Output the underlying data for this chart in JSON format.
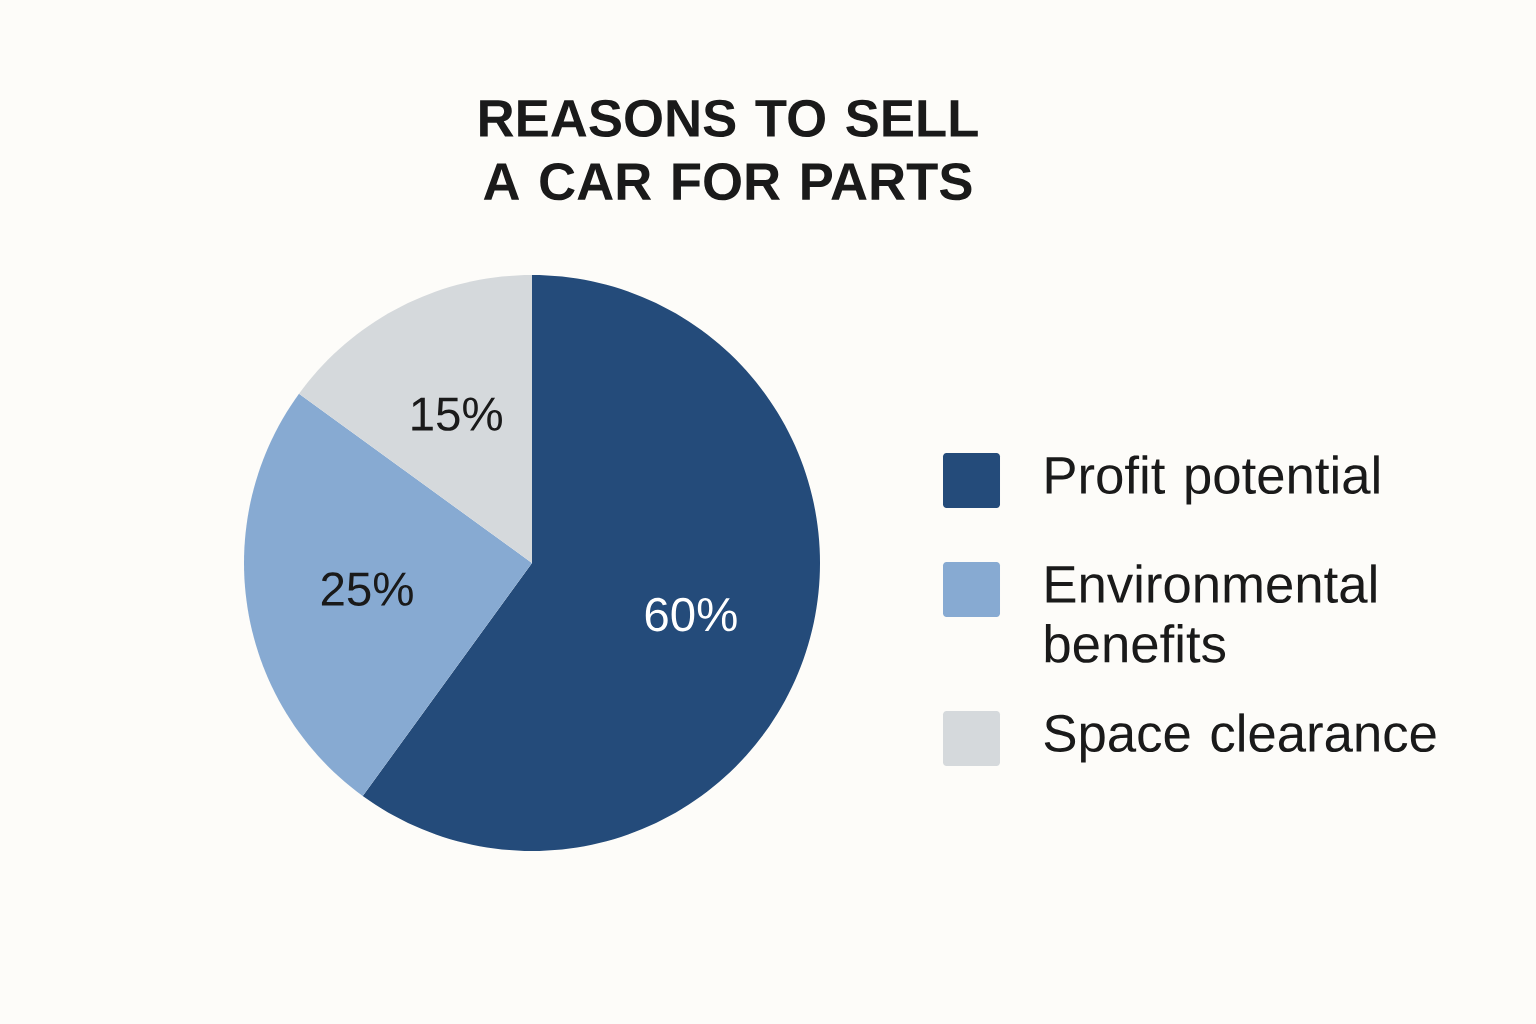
{
  "chart_data": {
    "type": "pie",
    "title": "REASONS TO SELL A CAR FOR PARTS",
    "categories": [
      "Profit potential",
      "Environmental benefits",
      "Space clearance"
    ],
    "values": [
      60,
      25,
      15
    ],
    "colors": [
      "#244b7a",
      "#87aad2",
      "#d5d9dc"
    ],
    "value_labels": [
      "60%",
      "25%",
      "15%"
    ],
    "legend": "right"
  }
}
